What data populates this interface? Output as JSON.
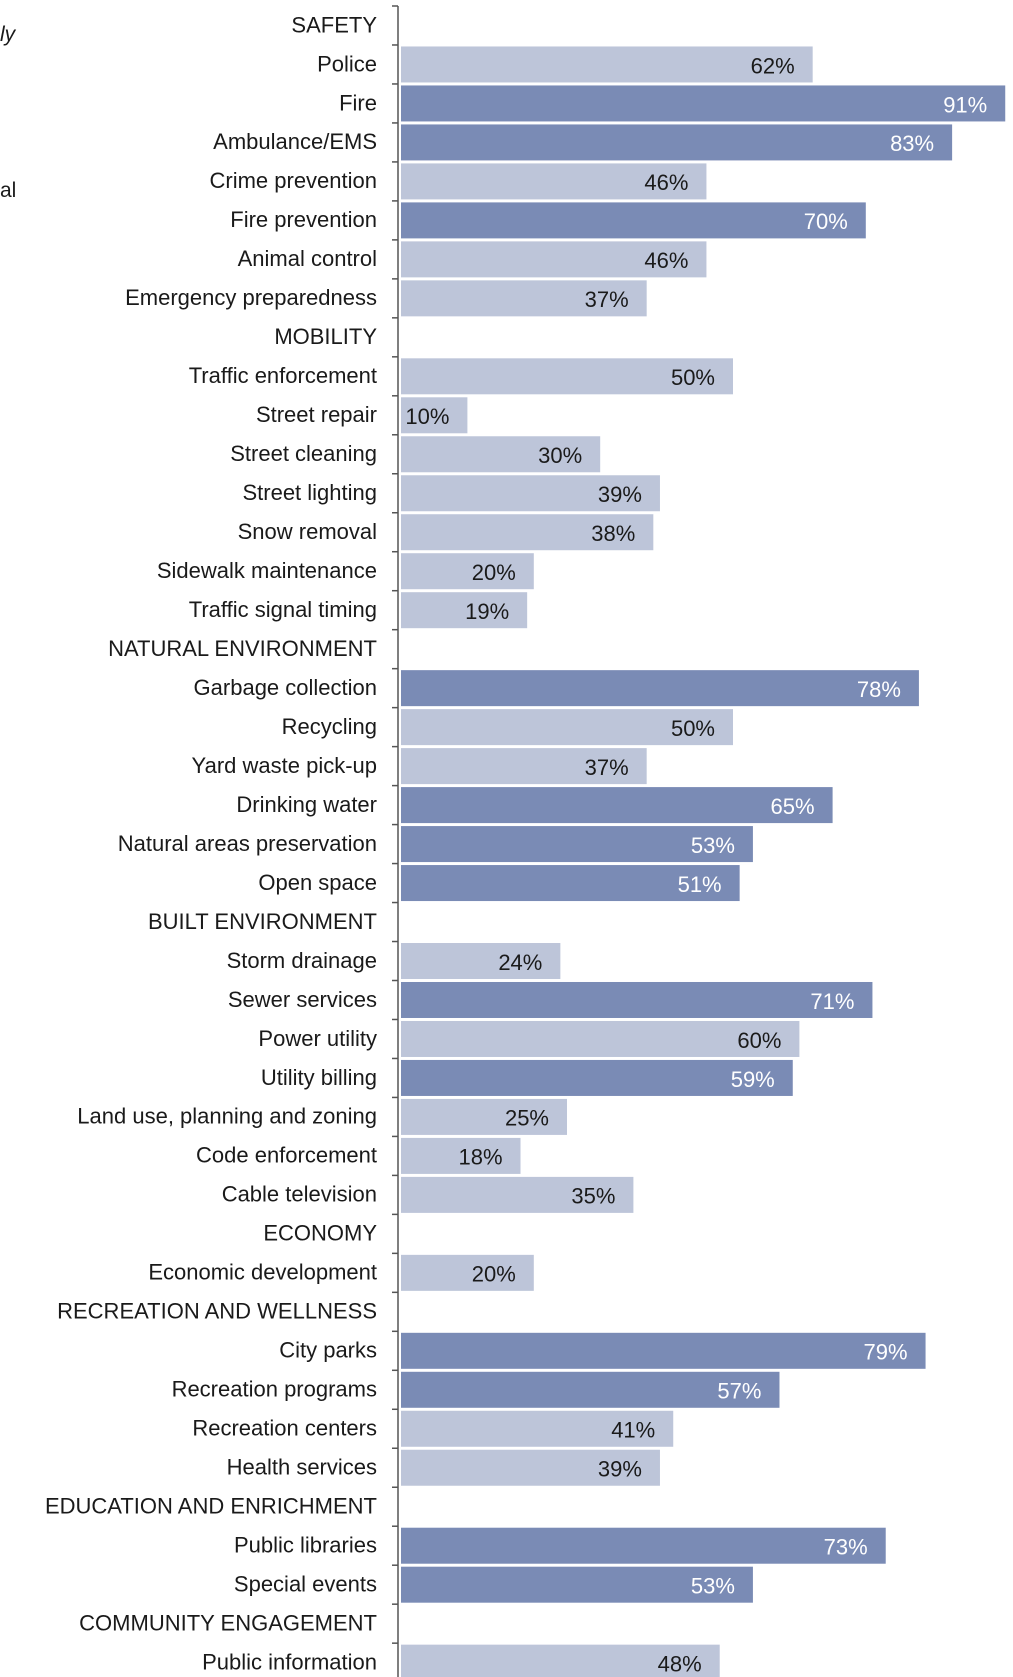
{
  "left_fragments": [
    "ly",
    "al"
  ],
  "colors": {
    "light": "#bdc5d9",
    "dark": "#7a8bb5",
    "light_label": "#1a1a1a",
    "dark_label": "#ffffff",
    "axis": "#555555",
    "text": "#1a1a1a"
  },
  "chart_data": {
    "type": "bar",
    "orientation": "horizontal",
    "value_format": "percent",
    "xlim": [
      0,
      100
    ],
    "grid": false,
    "legend": "none",
    "groups": [
      {
        "name": "SAFETY",
        "items": [
          {
            "label": "Police",
            "value": 62,
            "shade": "light"
          },
          {
            "label": "Fire",
            "value": 91,
            "shade": "dark"
          },
          {
            "label": "Ambulance/EMS",
            "value": 83,
            "shade": "dark"
          },
          {
            "label": "Crime prevention",
            "value": 46,
            "shade": "light"
          },
          {
            "label": "Fire prevention",
            "value": 70,
            "shade": "dark"
          },
          {
            "label": "Animal control",
            "value": 46,
            "shade": "light"
          },
          {
            "label": "Emergency preparedness",
            "value": 37,
            "shade": "light"
          }
        ]
      },
      {
        "name": "MOBILITY",
        "items": [
          {
            "label": "Traffic enforcement",
            "value": 50,
            "shade": "light"
          },
          {
            "label": "Street repair",
            "value": 10,
            "shade": "light"
          },
          {
            "label": "Street cleaning",
            "value": 30,
            "shade": "light"
          },
          {
            "label": "Street lighting",
            "value": 39,
            "shade": "light"
          },
          {
            "label": "Snow removal",
            "value": 38,
            "shade": "light"
          },
          {
            "label": "Sidewalk maintenance",
            "value": 20,
            "shade": "light"
          },
          {
            "label": "Traffic signal timing",
            "value": 19,
            "shade": "light"
          }
        ]
      },
      {
        "name": "NATURAL ENVIRONMENT",
        "items": [
          {
            "label": "Garbage collection",
            "value": 78,
            "shade": "dark"
          },
          {
            "label": "Recycling",
            "value": 50,
            "shade": "light"
          },
          {
            "label": "Yard waste pick-up",
            "value": 37,
            "shade": "light"
          },
          {
            "label": "Drinking water",
            "value": 65,
            "shade": "dark"
          },
          {
            "label": "Natural areas preservation",
            "value": 53,
            "shade": "dark"
          },
          {
            "label": "Open space",
            "value": 51,
            "shade": "dark"
          }
        ]
      },
      {
        "name": "BUILT ENVIRONMENT",
        "items": [
          {
            "label": "Storm drainage",
            "value": 24,
            "shade": "light"
          },
          {
            "label": "Sewer services",
            "value": 71,
            "shade": "dark"
          },
          {
            "label": "Power utility",
            "value": 60,
            "shade": "light"
          },
          {
            "label": "Utility billing",
            "value": 59,
            "shade": "dark"
          },
          {
            "label": "Land use, planning and zoning",
            "value": 25,
            "shade": "light"
          },
          {
            "label": "Code enforcement",
            "value": 18,
            "shade": "light"
          },
          {
            "label": "Cable television",
            "value": 35,
            "shade": "light"
          }
        ]
      },
      {
        "name": "ECONOMY",
        "items": [
          {
            "label": "Economic development",
            "value": 20,
            "shade": "light"
          }
        ]
      },
      {
        "name": "RECREATION AND WELLNESS",
        "items": [
          {
            "label": "City parks",
            "value": 79,
            "shade": "dark"
          },
          {
            "label": "Recreation programs",
            "value": 57,
            "shade": "dark"
          },
          {
            "label": "Recreation centers",
            "value": 41,
            "shade": "light"
          },
          {
            "label": "Health services",
            "value": 39,
            "shade": "light"
          }
        ]
      },
      {
        "name": "EDUCATION AND ENRICHMENT",
        "items": [
          {
            "label": "Public libraries",
            "value": 73,
            "shade": "dark"
          },
          {
            "label": "Special events",
            "value": 53,
            "shade": "dark"
          }
        ]
      },
      {
        "name": "COMMUNITY ENGAGEMENT",
        "items": [
          {
            "label": "Public information",
            "value": 48,
            "shade": "light"
          }
        ]
      }
    ]
  }
}
